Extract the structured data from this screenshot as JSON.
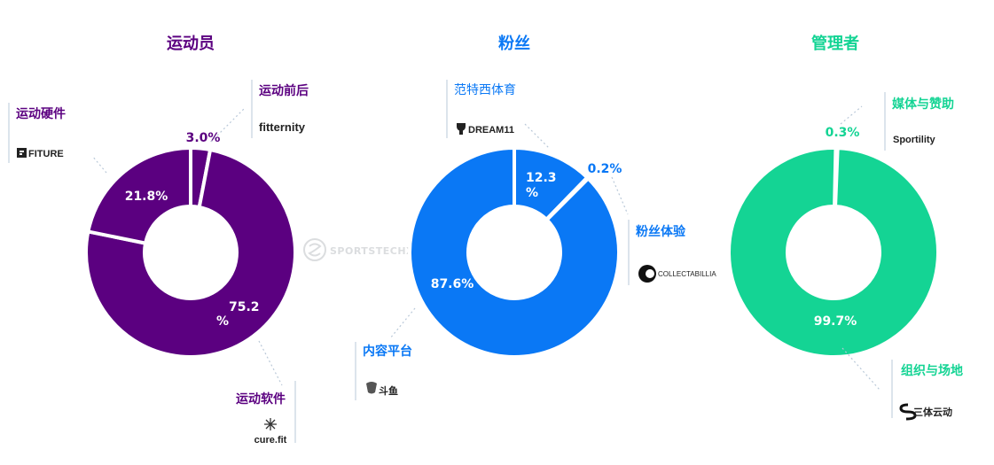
{
  "watermark": "SPORTSTECHX",
  "chart_data": [
    {
      "type": "pie",
      "variant": "donut",
      "title": "运动员",
      "color": "#5b0080",
      "slices": [
        {
          "label": "运动前后",
          "value": 3.0,
          "pct_label": "3.0%",
          "brand": "fitternity"
        },
        {
          "label": "运动软件",
          "value": 75.2,
          "pct_label": "75.2 %",
          "brand": "cure.fit"
        },
        {
          "label": "运动硬件",
          "value": 21.8,
          "pct_label": "21.8%",
          "brand": "FITURE"
        }
      ]
    },
    {
      "type": "pie",
      "variant": "donut",
      "title": "粉丝",
      "color": "#0a78f5",
      "slices": [
        {
          "label": "范特西体育",
          "value": 12.3,
          "pct_label": "12.3 %",
          "brand": "DREAM11"
        },
        {
          "label": "粉丝体验",
          "value": 0.2,
          "pct_label": "0.2%",
          "brand": "COLLECTABILLIA"
        },
        {
          "label": "内容平台",
          "value": 87.6,
          "pct_label": "87.6%",
          "brand": "斗鱼"
        }
      ]
    },
    {
      "type": "pie",
      "variant": "donut",
      "title": "管理者",
      "color": "#14d494",
      "slices": [
        {
          "label": "媒体与赞助",
          "value": 0.3,
          "pct_label": "0.3%",
          "brand": "Sportility"
        },
        {
          "label": "组织与场地",
          "value": 99.7,
          "pct_label": "99.7%",
          "brand": "三体云动"
        }
      ]
    }
  ]
}
